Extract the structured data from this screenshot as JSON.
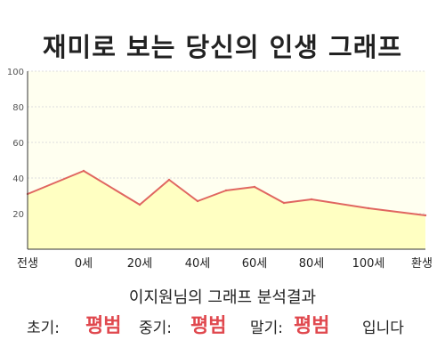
{
  "chart_data": {
    "type": "area",
    "title": "재미로 보는 당신의 인생 그래프",
    "x_tick_labels": [
      "전생",
      "0세",
      "20세",
      "40세",
      "60세",
      "80세",
      "100세",
      "환생"
    ],
    "y_ticks": [
      100,
      80,
      60,
      40,
      20
    ],
    "ylim": [
      0,
      100
    ],
    "grid": true,
    "series": [
      {
        "x": [
          "전생",
          "0세",
          "20세",
          "30세",
          "40세",
          "50세",
          "60세",
          "70세",
          "80세",
          "100세",
          "환생"
        ],
        "values": [
          31,
          44,
          25,
          39,
          27,
          33,
          35,
          26,
          28,
          23,
          19
        ]
      }
    ],
    "colors": {
      "fill": "#ffffc2",
      "line": "#e06660",
      "plot_background": "#fffff0",
      "grid": "#dedede"
    }
  },
  "summary": {
    "subtitle": "이지원님의 그래프 분석결과",
    "early_label": "초기:",
    "early_value": "평범",
    "middle_label": "중기:",
    "middle_value": "평범",
    "late_label": "말기:",
    "late_value": "평범",
    "ending": "입니다"
  }
}
